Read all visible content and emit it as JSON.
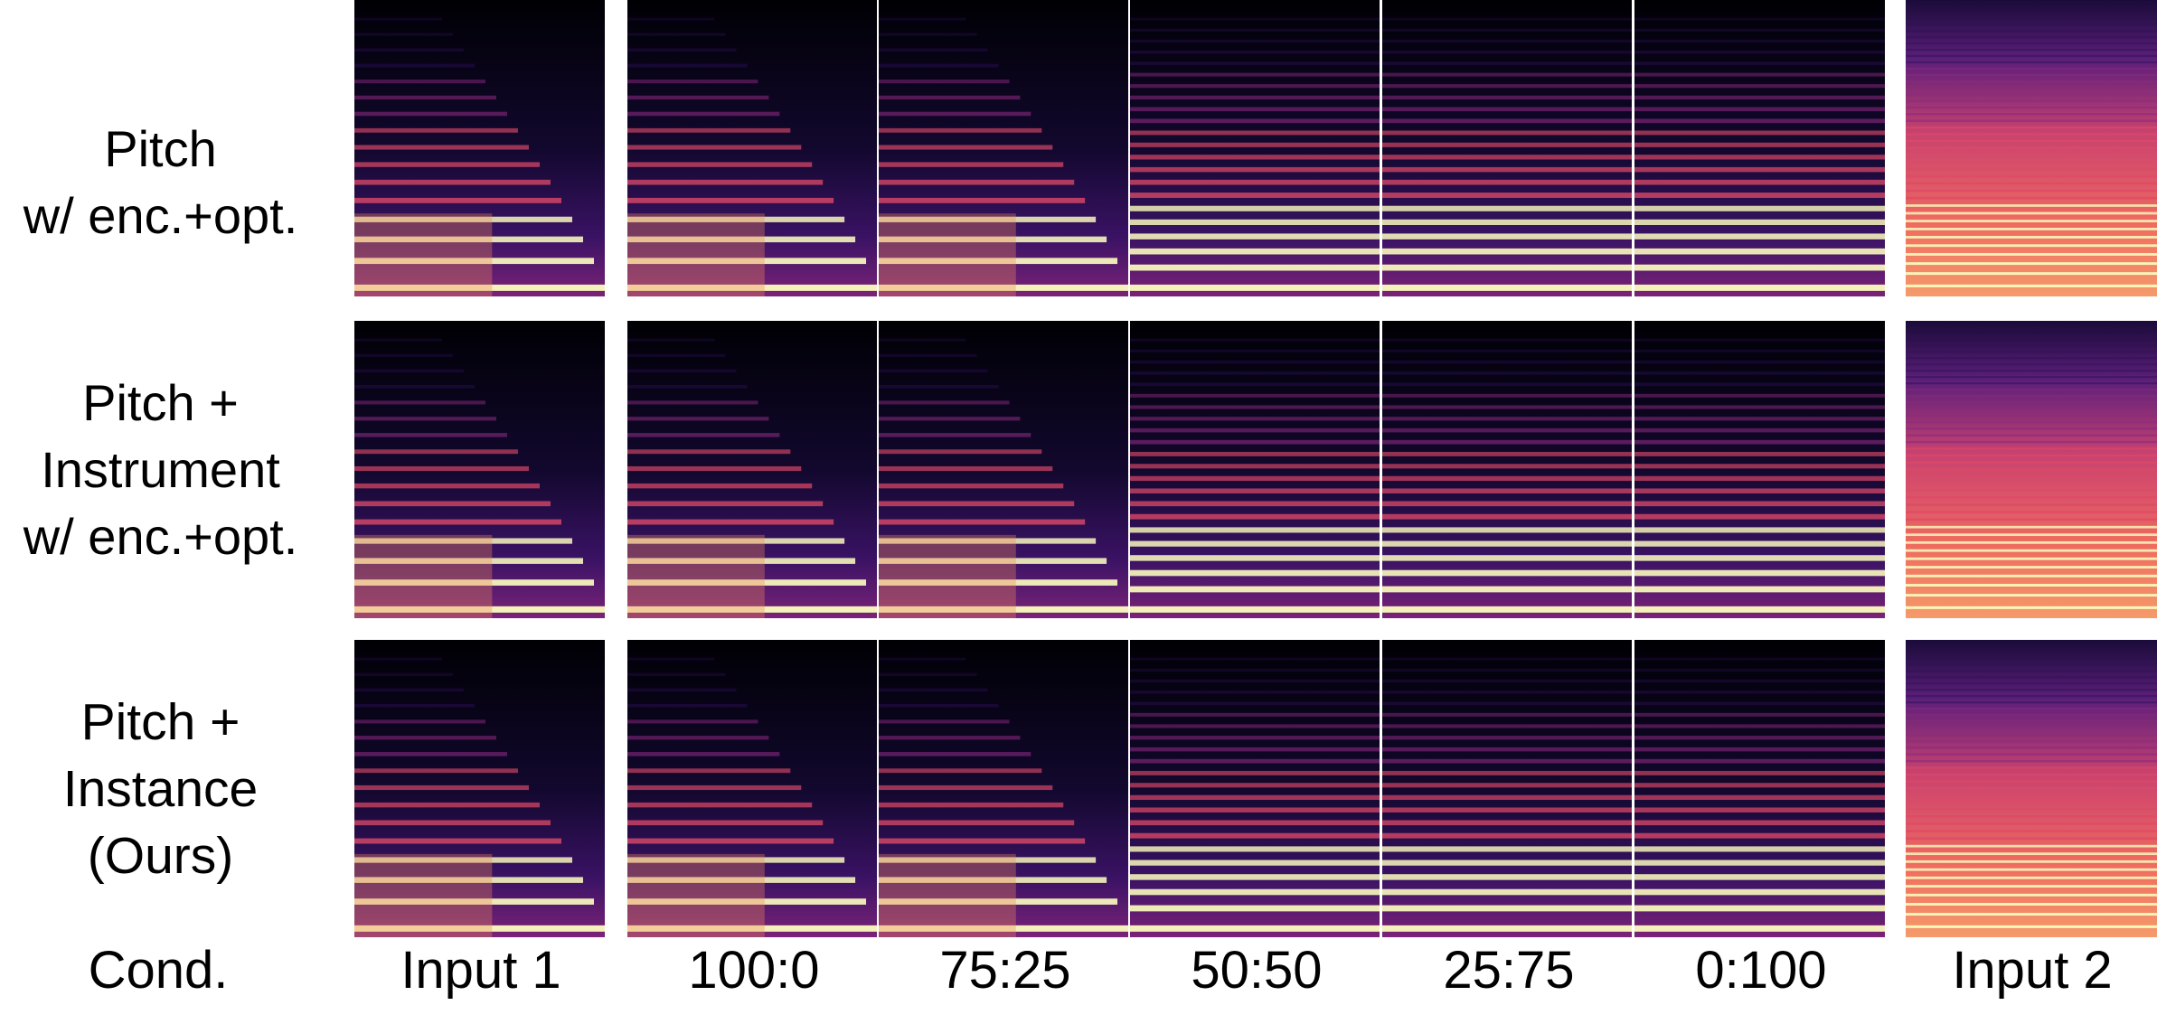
{
  "rows": [
    {
      "label_lines": [
        "Pitch",
        "w/ enc.+opt."
      ]
    },
    {
      "label_lines": [
        "Pitch +",
        "Instrument",
        "w/ enc.+opt."
      ]
    },
    {
      "label_lines": [
        "Pitch +",
        "Instance",
        "(Ours)"
      ]
    }
  ],
  "columns": [
    "Input 1",
    "100:0",
    "75:25",
    "50:50",
    "25:75",
    "0:100",
    "Input 2"
  ],
  "cond_label": "Cond.",
  "colors": {
    "background": "#000004",
    "low": "#2b0f54",
    "mid": "#8c2981",
    "high": "#de4968",
    "peak": "#fcfdbf"
  }
}
